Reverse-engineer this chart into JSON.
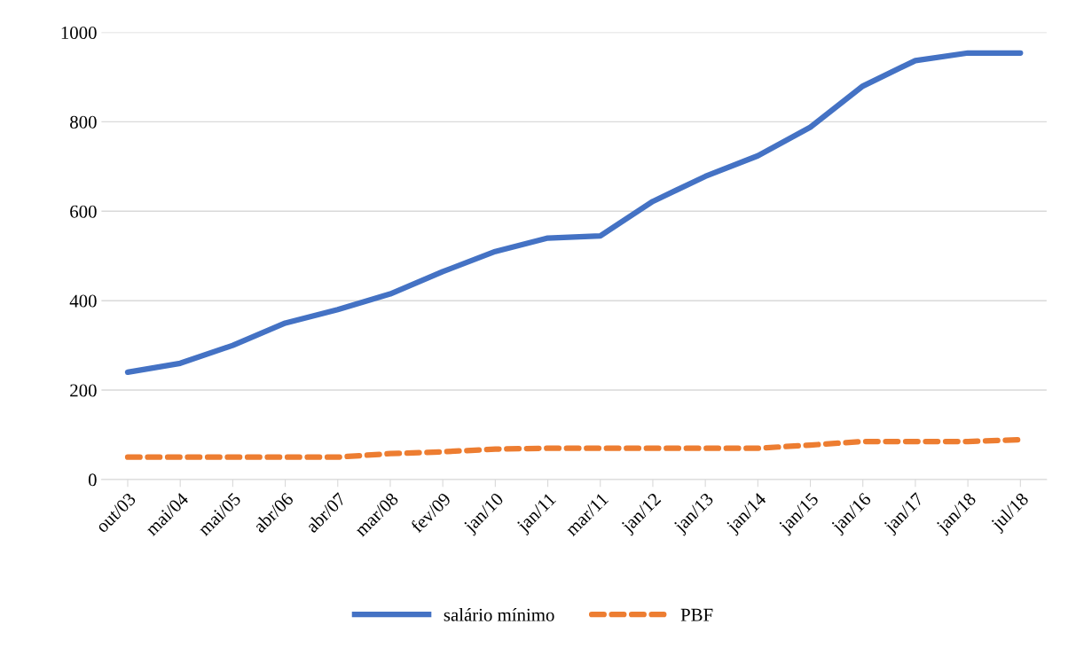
{
  "chart_data": {
    "type": "line",
    "categories": [
      "out/03",
      "mai/04",
      "mai/05",
      "abr/06",
      "abr/07",
      "mar/08",
      "fev/09",
      "jan/10",
      "jan/11",
      "mar/11",
      "jan/12",
      "jan/13",
      "jan/14",
      "jan/15",
      "jan/16",
      "jan/17",
      "jan/18",
      "jul/18"
    ],
    "series": [
      {
        "name": "salário mínimo",
        "color": "#4472c4",
        "line_style": "solid",
        "values": [
          240,
          260,
          300,
          350,
          380,
          415,
          465,
          510,
          540,
          545,
          622,
          678,
          724,
          788,
          880,
          937,
          954,
          954
        ]
      },
      {
        "name": "PBF",
        "color": "#ed7d31",
        "line_style": "dashed",
        "values": [
          50,
          50,
          50,
          50,
          50,
          58,
          62,
          68,
          70,
          70,
          70,
          70,
          70,
          77,
          85,
          85,
          85,
          89
        ]
      }
    ],
    "ylim": [
      0,
      1000
    ],
    "yticks": [
      0,
      200,
      400,
      600,
      800,
      1000
    ],
    "grid": "y",
    "legend": "bottom",
    "marker": "none"
  }
}
